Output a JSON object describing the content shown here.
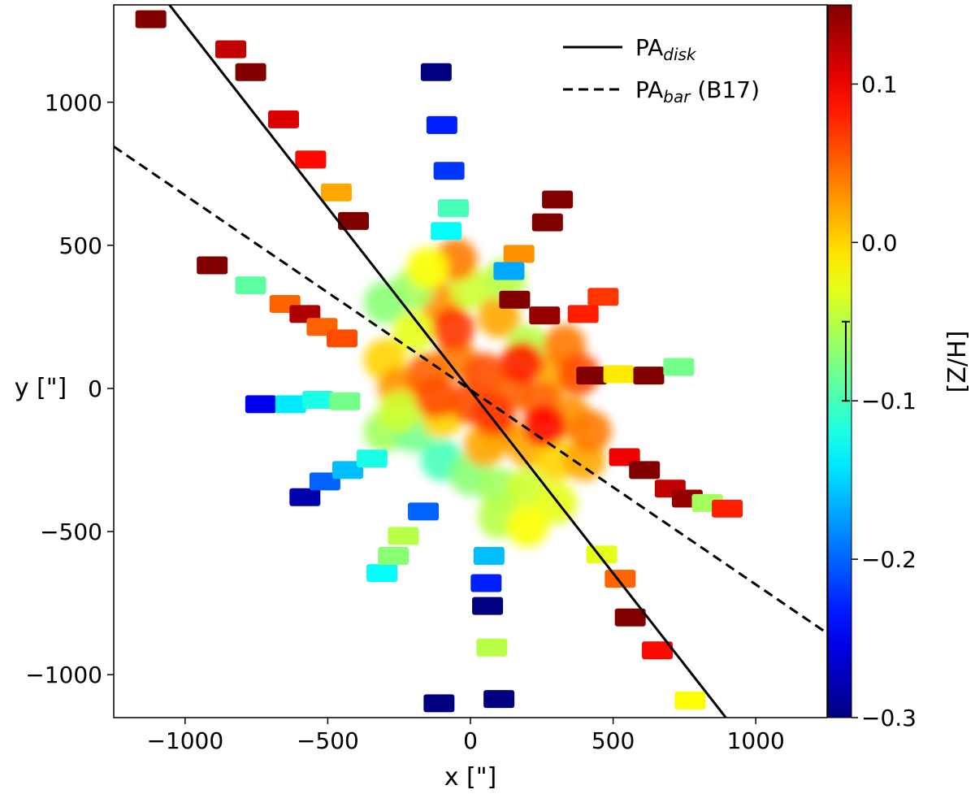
{
  "chart_data": {
    "type": "scatter",
    "title": "",
    "xlabel": "x [\"]",
    "ylabel": "y [\"]",
    "xlim": [
      -1250,
      1250
    ],
    "ylim": [
      -1150,
      1340
    ],
    "xticks": [
      -1000,
      -500,
      0,
      500,
      1000
    ],
    "yticks": [
      -1000,
      -500,
      0,
      500,
      1000
    ],
    "xtick_labels": [
      "−1000",
      "−500",
      "0",
      "500",
      "1000"
    ],
    "ytick_labels": [
      "−1000",
      "−500",
      "0",
      "500",
      "1000"
    ],
    "grid": false,
    "colorbar": {
      "label": "[Z/H]",
      "range": [
        -0.3,
        0.15
      ],
      "ticks": [
        -0.3,
        -0.2,
        -0.1,
        0.0,
        0.1
      ],
      "tick_labels": [
        "−0.3",
        "−0.2",
        "−0.1",
        "0.0",
        "0.1"
      ],
      "colormap": "jet",
      "error_bar": [
        -0.1,
        -0.05
      ]
    },
    "lines": [
      {
        "name": "PA_disk",
        "style": "solid",
        "color": "#000000",
        "points": [
          [
            -1055,
            1340
          ],
          [
            895,
            -1150
          ]
        ]
      },
      {
        "name": "PA_bar (B17)",
        "style": "dashed",
        "color": "#000000",
        "points": [
          [
            -1250,
            845
          ],
          [
            1250,
            -855
          ]
        ]
      }
    ],
    "legend": {
      "position": "top-right",
      "entries": [
        {
          "base": "PA",
          "sub": "disk",
          "suffix": ""
        },
        {
          "base": "PA",
          "sub": "bar",
          "suffix": " (B17)"
        }
      ]
    },
    "pointings": [
      {
        "x": -1120,
        "y": 1290,
        "z": 0.15
      },
      {
        "x": -840,
        "y": 1185,
        "z": 0.12
      },
      {
        "x": -770,
        "y": 1105,
        "z": 0.15
      },
      {
        "x": -655,
        "y": 940,
        "z": 0.11
      },
      {
        "x": -560,
        "y": 800,
        "z": 0.09
      },
      {
        "x": -470,
        "y": 685,
        "z": 0.02
      },
      {
        "x": -410,
        "y": 585,
        "z": 0.15
      },
      {
        "x": -905,
        "y": 430,
        "z": 0.15
      },
      {
        "x": -770,
        "y": 360,
        "z": -0.09
      },
      {
        "x": -650,
        "y": 295,
        "z": 0.05
      },
      {
        "x": -580,
        "y": 260,
        "z": 0.13
      },
      {
        "x": -520,
        "y": 215,
        "z": 0.05
      },
      {
        "x": -450,
        "y": 175,
        "z": 0.06
      },
      {
        "x": -735,
        "y": -55,
        "z": -0.25
      },
      {
        "x": -630,
        "y": -55,
        "z": -0.14
      },
      {
        "x": -535,
        "y": -40,
        "z": -0.12
      },
      {
        "x": -440,
        "y": -45,
        "z": -0.08
      },
      {
        "x": -580,
        "y": -380,
        "z": -0.28
      },
      {
        "x": -510,
        "y": -325,
        "z": -0.2
      },
      {
        "x": -430,
        "y": -285,
        "z": -0.16
      },
      {
        "x": -345,
        "y": -245,
        "z": -0.12
      },
      {
        "x": -310,
        "y": -645,
        "z": -0.13
      },
      {
        "x": -270,
        "y": -585,
        "z": -0.07
      },
      {
        "x": -235,
        "y": -515,
        "z": -0.05
      },
      {
        "x": -165,
        "y": -430,
        "z": -0.2
      },
      {
        "x": -110,
        "y": -1100,
        "z": -0.3
      },
      {
        "x": -100,
        "y": 920,
        "z": -0.23
      },
      {
        "x": -75,
        "y": 760,
        "z": -0.22
      },
      {
        "x": -60,
        "y": 630,
        "z": -0.1
      },
      {
        "x": -85,
        "y": 550,
        "z": -0.13
      },
      {
        "x": 65,
        "y": -585,
        "z": -0.16
      },
      {
        "x": 55,
        "y": -680,
        "z": -0.23
      },
      {
        "x": 60,
        "y": -760,
        "z": -0.3
      },
      {
        "x": 75,
        "y": -905,
        "z": -0.05
      },
      {
        "x": 100,
        "y": -1085,
        "z": -0.3
      },
      {
        "x": 305,
        "y": 660,
        "z": 0.15
      },
      {
        "x": 270,
        "y": 580,
        "z": 0.15
      },
      {
        "x": 170,
        "y": 470,
        "z": 0.03
      },
      {
        "x": 135,
        "y": 410,
        "z": -0.17
      },
      {
        "x": 155,
        "y": 310,
        "z": 0.15
      },
      {
        "x": 260,
        "y": 255,
        "z": 0.14
      },
      {
        "x": 465,
        "y": 320,
        "z": 0.07
      },
      {
        "x": 395,
        "y": 260,
        "z": 0.08
      },
      {
        "x": 425,
        "y": 45,
        "z": 0.15
      },
      {
        "x": 520,
        "y": 50,
        "z": -0.01
      },
      {
        "x": 625,
        "y": 45,
        "z": 0.15
      },
      {
        "x": 730,
        "y": 75,
        "z": -0.08
      },
      {
        "x": 540,
        "y": -240,
        "z": 0.1
      },
      {
        "x": 610,
        "y": -285,
        "z": 0.15
      },
      {
        "x": 700,
        "y": -350,
        "z": 0.12
      },
      {
        "x": 760,
        "y": -385,
        "z": 0.14
      },
      {
        "x": 830,
        "y": -400,
        "z": -0.06
      },
      {
        "x": 900,
        "y": -420,
        "z": 0.08
      },
      {
        "x": 460,
        "y": -580,
        "z": -0.03
      },
      {
        "x": 525,
        "y": -665,
        "z": 0.05
      },
      {
        "x": 560,
        "y": -800,
        "z": 0.15
      },
      {
        "x": 655,
        "y": -915,
        "z": 0.09
      },
      {
        "x": 770,
        "y": -1090,
        "z": -0.02
      },
      {
        "x": -120,
        "y": 1105,
        "z": -0.3
      }
    ],
    "core_blobs": [
      {
        "x": -200,
        "y": 200,
        "z": -0.03
      },
      {
        "x": -100,
        "y": 300,
        "z": 0.03
      },
      {
        "x": 0,
        "y": 350,
        "z": -0.04
      },
      {
        "x": 100,
        "y": 250,
        "z": 0.02
      },
      {
        "x": 200,
        "y": 150,
        "z": -0.05
      },
      {
        "x": 300,
        "y": 50,
        "z": 0.02
      },
      {
        "x": -300,
        "y": 100,
        "z": 0.0
      },
      {
        "x": -250,
        "y": 0,
        "z": 0.03
      },
      {
        "x": -150,
        "y": 50,
        "z": 0.05
      },
      {
        "x": -50,
        "y": 100,
        "z": 0.04
      },
      {
        "x": 50,
        "y": 50,
        "z": 0.06
      },
      {
        "x": 150,
        "y": 0,
        "z": 0.05
      },
      {
        "x": 250,
        "y": -50,
        "z": 0.05
      },
      {
        "x": 350,
        "y": -100,
        "z": 0.03
      },
      {
        "x": -300,
        "y": -150,
        "z": -0.06
      },
      {
        "x": -200,
        "y": -150,
        "z": -0.08
      },
      {
        "x": -100,
        "y": -100,
        "z": 0.0
      },
      {
        "x": 0,
        "y": -50,
        "z": 0.06
      },
      {
        "x": 100,
        "y": -150,
        "z": 0.04
      },
      {
        "x": 200,
        "y": -200,
        "z": 0.02
      },
      {
        "x": 300,
        "y": -250,
        "z": 0.0
      },
      {
        "x": 400,
        "y": -250,
        "z": 0.02
      },
      {
        "x": -100,
        "y": -250,
        "z": -0.1
      },
      {
        "x": 0,
        "y": -300,
        "z": -0.07
      },
      {
        "x": 100,
        "y": -350,
        "z": -0.06
      },
      {
        "x": 200,
        "y": -350,
        "z": -0.04
      },
      {
        "x": 300,
        "y": -400,
        "z": -0.03
      },
      {
        "x": 100,
        "y": -450,
        "z": -0.05
      },
      {
        "x": 200,
        "y": -480,
        "z": -0.02
      },
      {
        "x": -200,
        "y": 350,
        "z": -0.06
      },
      {
        "x": -300,
        "y": 300,
        "z": -0.07
      },
      {
        "x": -50,
        "y": 450,
        "z": 0.04
      },
      {
        "x": 120,
        "y": 380,
        "z": -0.05
      },
      {
        "x": -150,
        "y": 420,
        "z": -0.02
      },
      {
        "x": 50,
        "y": -200,
        "z": 0.02
      },
      {
        "x": -250,
        "y": -80,
        "z": -0.04
      },
      {
        "x": 330,
        "y": 150,
        "z": 0.04
      },
      {
        "x": 380,
        "y": 50,
        "z": 0.06
      },
      {
        "x": -60,
        "y": 210,
        "z": 0.07
      },
      {
        "x": 180,
        "y": 90,
        "z": 0.08
      },
      {
        "x": 260,
        "y": -130,
        "z": 0.09
      },
      {
        "x": -120,
        "y": -30,
        "z": 0.06
      },
      {
        "x": 80,
        "y": -90,
        "z": 0.07
      },
      {
        "x": 420,
        "y": -150,
        "z": 0.04
      }
    ]
  }
}
